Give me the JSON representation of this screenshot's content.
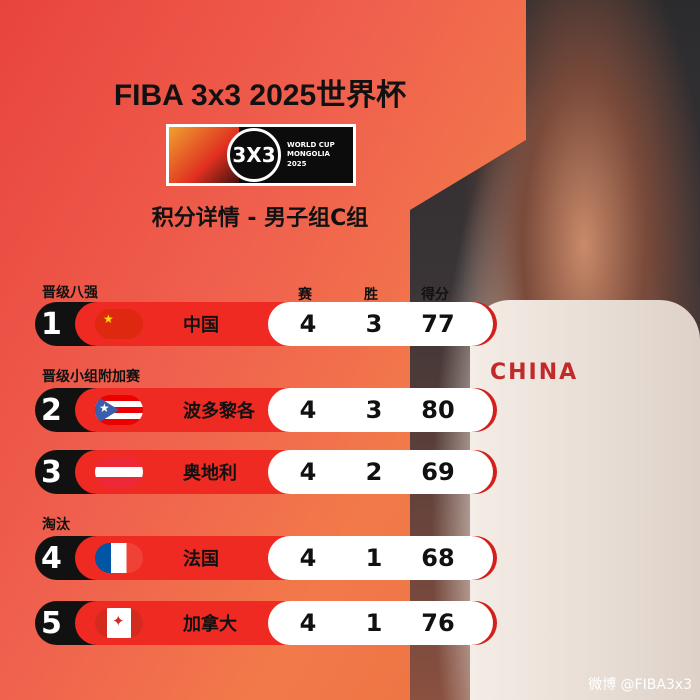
{
  "title": "FIBA 3x3 2025世界杯",
  "logo": {
    "badge": "3X3",
    "line1": "WORLD CUP",
    "line2": "MONGOLIA",
    "line3": "2025"
  },
  "subtitle": "积分详情 - 男子组C组",
  "columns": [
    "赛",
    "胜",
    "得分"
  ],
  "sections": [
    "晋级八强",
    "晋级小组附加赛",
    "淘汰"
  ],
  "rows": [
    {
      "rank": "1",
      "team": "中国",
      "flag": "china-flag",
      "played": "4",
      "won": "3",
      "points": "77"
    },
    {
      "rank": "2",
      "team": "波多黎各",
      "flag": "puerto-rico-flag",
      "played": "4",
      "won": "3",
      "points": "80"
    },
    {
      "rank": "3",
      "team": "奥地利",
      "flag": "austria-flag",
      "played": "4",
      "won": "2",
      "points": "69"
    },
    {
      "rank": "4",
      "team": "法国",
      "flag": "france-flag",
      "played": "4",
      "won": "1",
      "points": "68"
    },
    {
      "rank": "5",
      "team": "加拿大",
      "flag": "canada-flag",
      "played": "4",
      "won": "1",
      "points": "76"
    }
  ],
  "watermark": "微博 @FIBA3x3",
  "colors": {
    "accent": "#ee2a22",
    "rank_bg": "#111111"
  }
}
